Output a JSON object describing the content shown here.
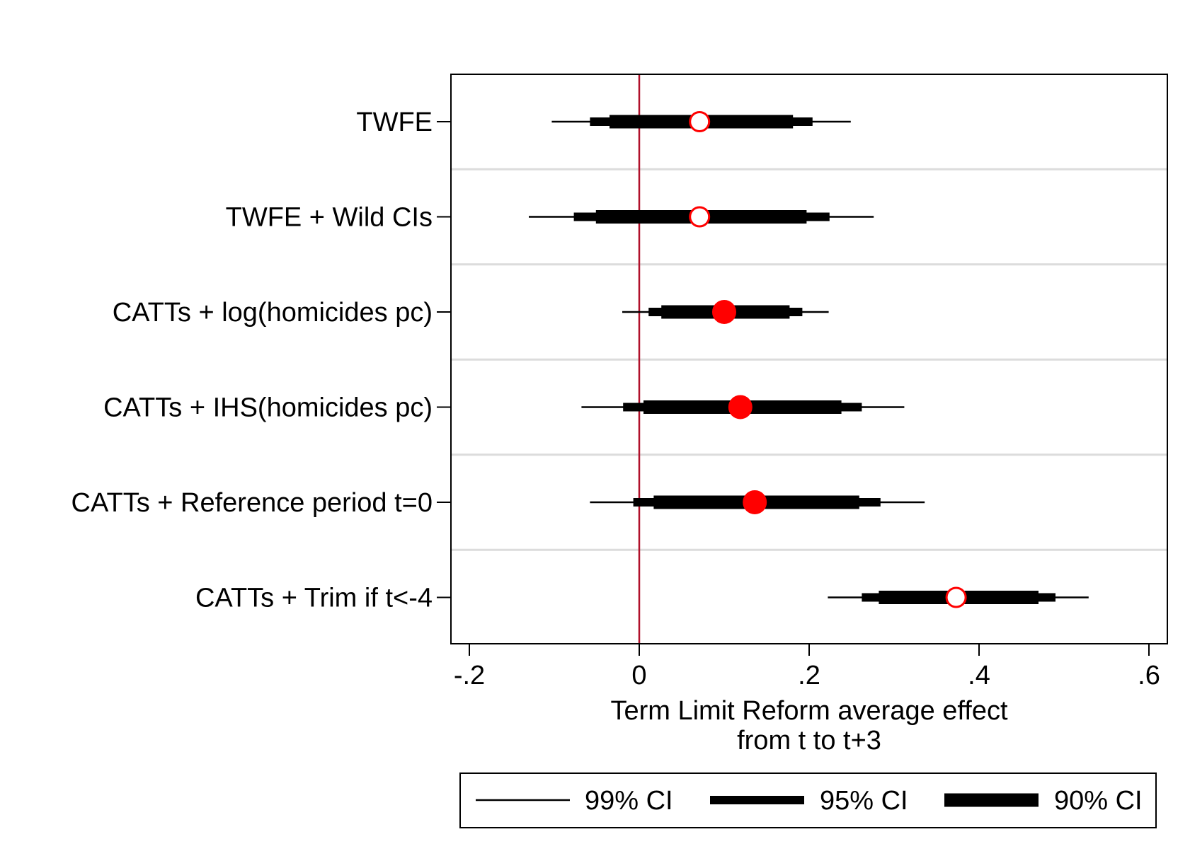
{
  "chart_data": {
    "type": "coefficient-plot",
    "xlabel_line1": "Term Limit Reform average effect",
    "xlabel_line2": "from t to t+3",
    "ylabel": "",
    "xlim": [
      -0.22,
      0.62
    ],
    "x_ticks": [
      {
        "value": -0.2,
        "label": "-.2"
      },
      {
        "value": 0,
        "label": "0"
      },
      {
        "value": 0.2,
        "label": ".2"
      },
      {
        "value": 0.4,
        "label": ".4"
      },
      {
        "value": 0.6,
        "label": ".6"
      }
    ],
    "reference_line_x": 0,
    "grid": "horizontal separators between rows",
    "legend_position": "bottom",
    "legend": [
      {
        "key": "ci99",
        "label": "99% CI"
      },
      {
        "key": "ci95",
        "label": "95% CI"
      },
      {
        "key": "ci90",
        "label": "90% CI"
      }
    ],
    "rows": [
      {
        "label": "TWFE",
        "estimate": 0.071,
        "ci99": [
          -0.103,
          0.249
        ],
        "ci95": [
          -0.058,
          0.204
        ],
        "ci90": [
          -0.035,
          0.181
        ],
        "marker": "hollow"
      },
      {
        "label": "TWFE + Wild CIs",
        "estimate": 0.071,
        "ci99": [
          -0.13,
          0.276
        ],
        "ci95": [
          -0.077,
          0.224
        ],
        "ci90": [
          -0.051,
          0.197
        ],
        "marker": "hollow"
      },
      {
        "label": "CATTs + log(homicides pc)",
        "estimate": 0.1,
        "ci99": [
          -0.02,
          0.223
        ],
        "ci95": [
          0.011,
          0.192
        ],
        "ci90": [
          0.026,
          0.177
        ],
        "marker": "filled"
      },
      {
        "label": "CATTs + IHS(homicides pc)",
        "estimate": 0.119,
        "ci99": [
          -0.068,
          0.312
        ],
        "ci95": [
          -0.019,
          0.262
        ],
        "ci90": [
          0.005,
          0.238
        ],
        "marker": "filled"
      },
      {
        "label": "CATTs + Reference period t=0",
        "estimate": 0.136,
        "ci99": [
          -0.058,
          0.336
        ],
        "ci95": [
          -0.007,
          0.284
        ],
        "ci90": [
          0.017,
          0.259
        ],
        "marker": "filled"
      },
      {
        "label": "CATTs + Trim if t<-4",
        "estimate": 0.373,
        "ci99": [
          0.222,
          0.529
        ],
        "ci95": [
          0.262,
          0.49
        ],
        "ci90": [
          0.282,
          0.47
        ],
        "marker": "hollow"
      }
    ],
    "colors": {
      "marker": "#ff0000",
      "reference_line": "#b0102a",
      "ci": "#000000",
      "separator": "#dcdcdc"
    }
  }
}
